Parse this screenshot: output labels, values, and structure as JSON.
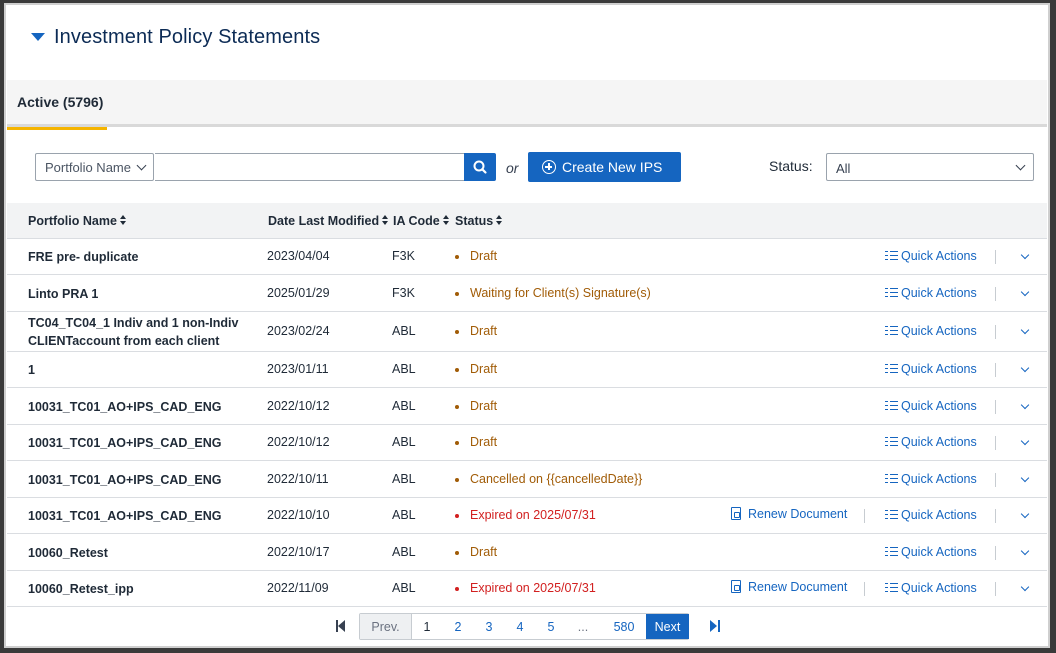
{
  "header": {
    "title": "Investment Policy Statements"
  },
  "tabs": [
    {
      "label": "Active (5796)"
    }
  ],
  "toolbar": {
    "filter_select": "Portfolio Name",
    "search_value": "",
    "or_label": "or",
    "create_label": "Create New IPS",
    "status_label": "Status:",
    "status_value": "All"
  },
  "table": {
    "headers": {
      "portfolio": "Portfolio Name",
      "date": "Date Last Modified",
      "code": "IA Code",
      "status": "Status"
    },
    "quick_actions_label": "Quick Actions",
    "renew_label": "Renew Document",
    "rows": [
      {
        "name": "FRE pre- duplicate",
        "date": "2023/04/04",
        "code": "F3K",
        "status": "Draft"
      },
      {
        "name": "Linto PRA 1",
        "date": "2025/01/29",
        "code": "F3K",
        "status": "Waiting for Client(s) Signature(s)"
      },
      {
        "name": "TC04_TC04_1 Indiv and 1 non-Indiv CLIENTaccount from each client",
        "date": "2023/02/24",
        "code": "ABL",
        "status": "Draft"
      },
      {
        "name": "1",
        "date": "2023/01/11",
        "code": "ABL",
        "status": "Draft"
      },
      {
        "name": "10031_TC01_AO+IPS_CAD_ENG",
        "date": "2022/10/12",
        "code": "ABL",
        "status": "Draft"
      },
      {
        "name": "10031_TC01_AO+IPS_CAD_ENG",
        "date": "2022/10/12",
        "code": "ABL",
        "status": "Draft"
      },
      {
        "name": "10031_TC01_AO+IPS_CAD_ENG",
        "date": "2022/10/11",
        "code": "ABL",
        "status": "Cancelled on {{cancelledDate}}"
      },
      {
        "name": "10031_TC01_AO+IPS_CAD_ENG",
        "date": "2022/10/10",
        "code": "ABL",
        "status": "Expired on 2025/07/31"
      },
      {
        "name": "10060_Retest",
        "date": "2022/10/17",
        "code": "ABL",
        "status": "Draft"
      },
      {
        "name": "10060_Retest_ipp",
        "date": "2022/11/09",
        "code": "ABL",
        "status": "Expired on 2025/07/31"
      }
    ]
  },
  "pagination": {
    "prev": "Prev.",
    "pages": [
      "1",
      "2",
      "3",
      "4",
      "5",
      "...",
      "580"
    ],
    "current": "1",
    "next": "Next"
  },
  "colors": {
    "accent": "#1565c0",
    "tab_underline": "#f5b400",
    "draft": "#a15c07",
    "expired": "#d22020"
  }
}
